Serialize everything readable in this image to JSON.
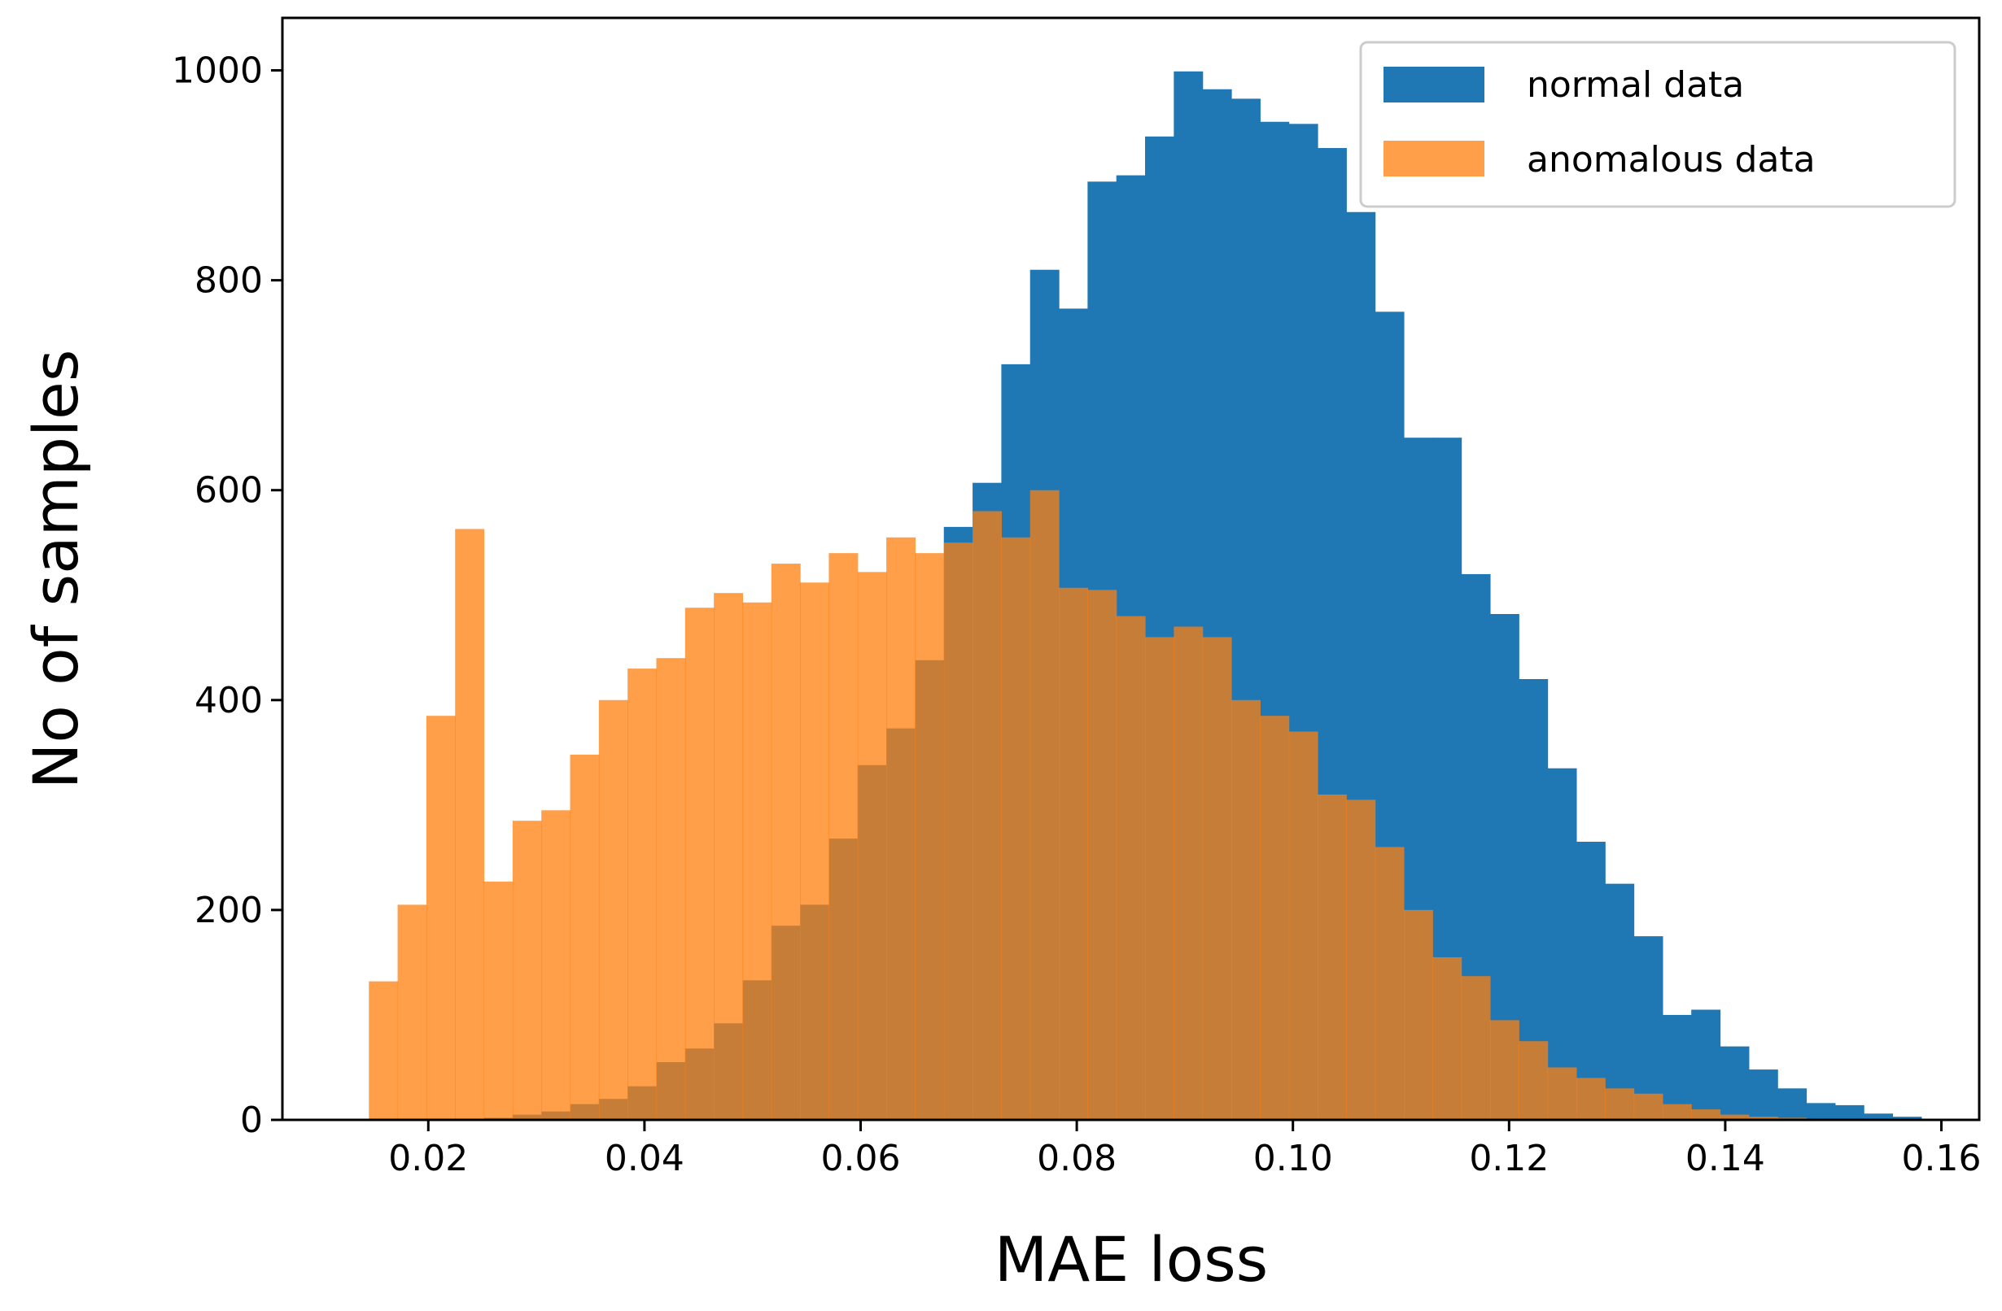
{
  "chart_data": {
    "type": "bar",
    "subtype": "overlapping-histogram",
    "title": "",
    "xlabel": "MAE loss",
    "ylabel": "No of samples",
    "xlim": [
      0.0065,
      0.1635
    ],
    "ylim": [
      0,
      1050
    ],
    "xticks": [
      0.02,
      0.04,
      0.06,
      0.08,
      0.1,
      0.12,
      0.14,
      0.16
    ],
    "xtick_labels": [
      "0.02",
      "0.04",
      "0.06",
      "0.08",
      "0.10",
      "0.12",
      "0.14",
      "0.16"
    ],
    "yticks": [
      0,
      200,
      400,
      600,
      800,
      1000
    ],
    "ytick_labels": [
      "0",
      "200",
      "400",
      "600",
      "800",
      "1000"
    ],
    "grid": false,
    "legend": {
      "position": "top-right",
      "entries": [
        "normal data",
        "anomalous data"
      ]
    },
    "series": [
      {
        "name": "normal data",
        "color": "#1f77b4",
        "opacity": 1.0,
        "bins": [
          0.0145,
          0.01716,
          0.01982,
          0.02248,
          0.02514,
          0.0278,
          0.03046,
          0.03312,
          0.03578,
          0.03844,
          0.0411,
          0.04376,
          0.04642,
          0.04908,
          0.05174,
          0.0544,
          0.05706,
          0.05972,
          0.06238,
          0.06504,
          0.0677,
          0.07036,
          0.07302,
          0.07568,
          0.07834,
          0.081,
          0.08366,
          0.08632,
          0.08898,
          0.09164,
          0.0943,
          0.09696,
          0.09962,
          0.10228,
          0.10494,
          0.1076,
          0.11026,
          0.11292,
          0.11558,
          0.11824,
          0.1209,
          0.12356,
          0.12622,
          0.12888,
          0.13154,
          0.1342,
          0.13686,
          0.13952,
          0.14218,
          0.14484,
          0.1475,
          0.15016,
          0.15282,
          0.15548,
          0.15814
        ],
        "values": [
          0,
          0,
          0,
          0,
          2,
          5,
          8,
          15,
          20,
          32,
          55,
          68,
          92,
          133,
          185,
          205,
          268,
          338,
          373,
          438,
          565,
          607,
          720,
          810,
          773,
          894,
          900,
          937,
          999,
          982,
          973,
          951,
          949,
          926,
          865,
          770,
          650,
          650,
          520,
          482,
          420,
          335,
          265,
          225,
          175,
          100,
          105,
          70,
          48,
          30,
          16,
          14,
          6,
          3
        ]
      },
      {
        "name": "anomalous data",
        "color": "#ff7f0e",
        "opacity": 0.75,
        "bins": [
          0.0145,
          0.01716,
          0.01982,
          0.02248,
          0.02514,
          0.0278,
          0.03046,
          0.03312,
          0.03578,
          0.03844,
          0.0411,
          0.04376,
          0.04642,
          0.04908,
          0.05174,
          0.0544,
          0.05706,
          0.05972,
          0.06238,
          0.06504,
          0.0677,
          0.07036,
          0.07302,
          0.07568,
          0.07834,
          0.081,
          0.08366,
          0.08632,
          0.08898,
          0.09164,
          0.0943,
          0.09696,
          0.09962,
          0.10228,
          0.10494,
          0.1076,
          0.11026,
          0.11292,
          0.11558,
          0.11824,
          0.1209,
          0.12356,
          0.12622,
          0.12888,
          0.13154,
          0.1342,
          0.13686,
          0.13952,
          0.14218,
          0.14484,
          0.1475,
          0.15016,
          0.15282,
          0.15548,
          0.15814
        ],
        "values": [
          132,
          205,
          385,
          563,
          227,
          285,
          295,
          348,
          400,
          430,
          440,
          488,
          502,
          493,
          530,
          512,
          540,
          522,
          555,
          540,
          550,
          580,
          555,
          600,
          507,
          505,
          480,
          460,
          470,
          460,
          400,
          385,
          370,
          310,
          305,
          260,
          200,
          155,
          137,
          95,
          75,
          50,
          40,
          30,
          25,
          15,
          10,
          5,
          3,
          2,
          1,
          0,
          0,
          0
        ]
      }
    ]
  }
}
